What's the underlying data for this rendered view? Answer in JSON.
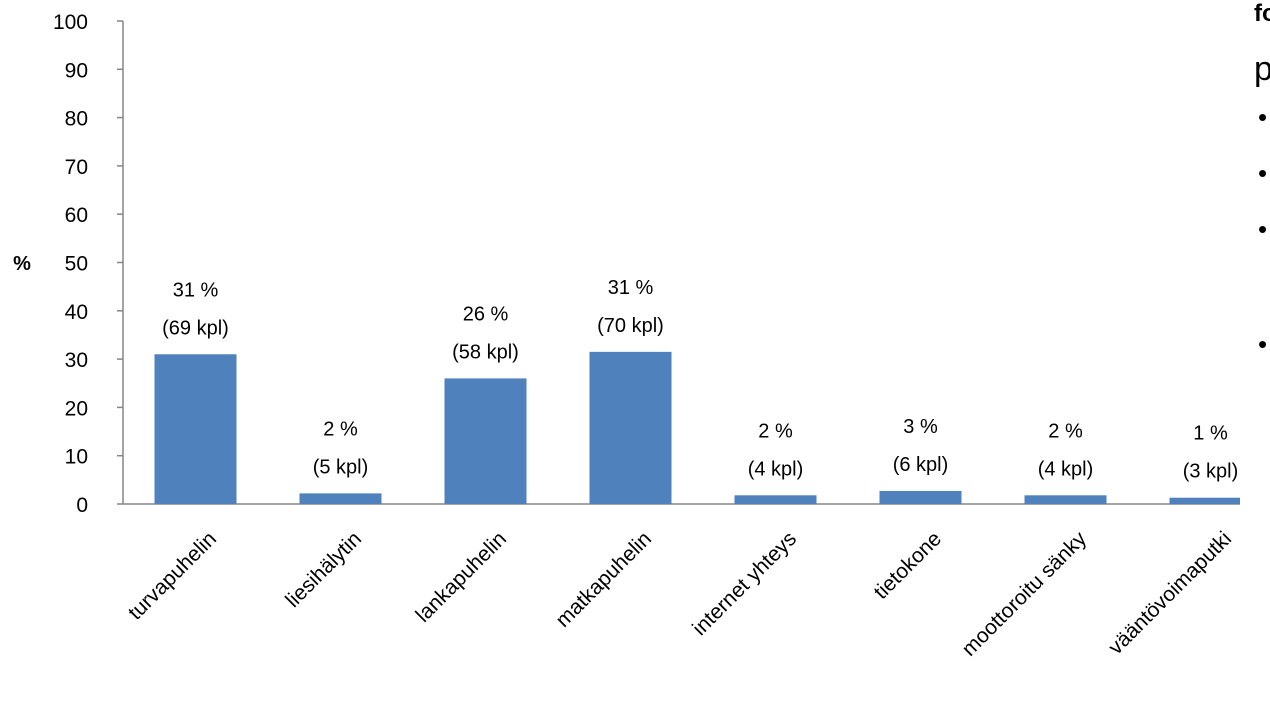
{
  "chart_data": {
    "type": "bar",
    "ylabel": "%",
    "ylim": [
      0,
      100
    ],
    "yticks": [
      "0",
      "10",
      "20",
      "30",
      "40",
      "50",
      "60",
      "70",
      "80",
      "90",
      "100"
    ],
    "categories": [
      "turvapuhelin",
      "liesihälytin",
      "lankapuhelin",
      "matkapuhelin",
      "internet yhteys",
      "tietokone",
      "moottoroitu sänky",
      "vääntövoimaputki"
    ],
    "values": [
      31,
      2.2,
      26,
      31.5,
      1.8,
      2.7,
      1.8,
      1.3
    ],
    "data_labels": [
      [
        "31 %",
        "(69 kpl)"
      ],
      [
        "2 %",
        "(5 kpl)"
      ],
      [
        "26 %",
        "(58 kpl)"
      ],
      [
        "31 %",
        "(70 kpl)"
      ],
      [
        "2 %",
        "(4 kpl)"
      ],
      [
        "3 %",
        "(6 kpl)"
      ],
      [
        "2 %",
        "(4 kpl)"
      ],
      [
        "1 %",
        "(3 kpl)"
      ]
    ],
    "bar_color": "#4F81BD",
    "axis_color": "#868686",
    "grid": false,
    "legend": "none"
  },
  "side_panel": {
    "heading_fragment": "fo",
    "text_fragment": "p",
    "bullet_count": 4
  }
}
